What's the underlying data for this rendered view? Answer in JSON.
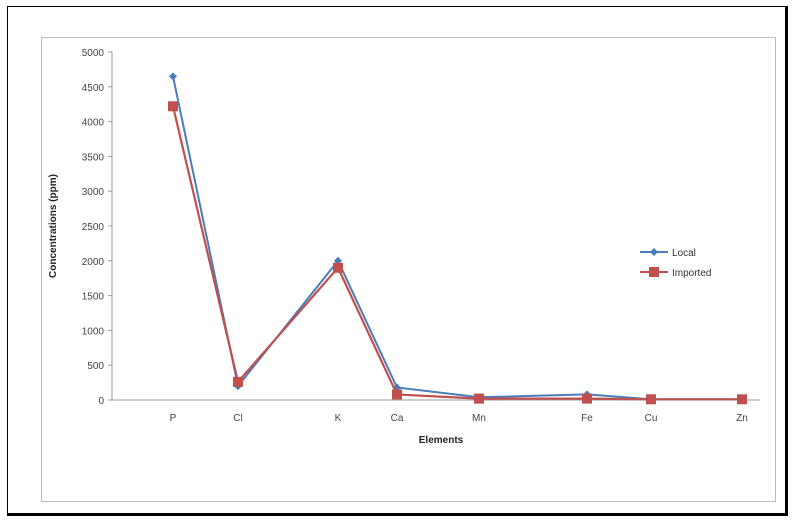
{
  "chart_data": {
    "type": "line",
    "categories": [
      "P",
      "Cl",
      "K",
      "Ca",
      "Mn",
      "Fe",
      "Cu",
      "Zn"
    ],
    "series": [
      {
        "name": "Local",
        "color": "#4a7ebb",
        "marker": "diamond",
        "values": [
          4650,
          200,
          2000,
          180,
          40,
          80,
          10,
          10
        ]
      },
      {
        "name": "Imported",
        "color": "#c0504d",
        "marker": "square",
        "values": [
          4220,
          260,
          1900,
          80,
          20,
          20,
          10,
          10
        ]
      }
    ],
    "xlabel": "Elements",
    "ylabel": "Concentrations (ppm)",
    "ylim": [
      0,
      5000
    ],
    "yticks": [
      0,
      500,
      1000,
      1500,
      2000,
      2500,
      3000,
      3500,
      4000,
      4500,
      5000
    ],
    "ytick_labels": [
      "0",
      "500",
      "1000",
      "1500",
      "2000",
      "2500",
      "3000",
      "3500",
      "4000",
      "4500",
      "5000"
    ],
    "grid": false,
    "legend_position": "right"
  }
}
